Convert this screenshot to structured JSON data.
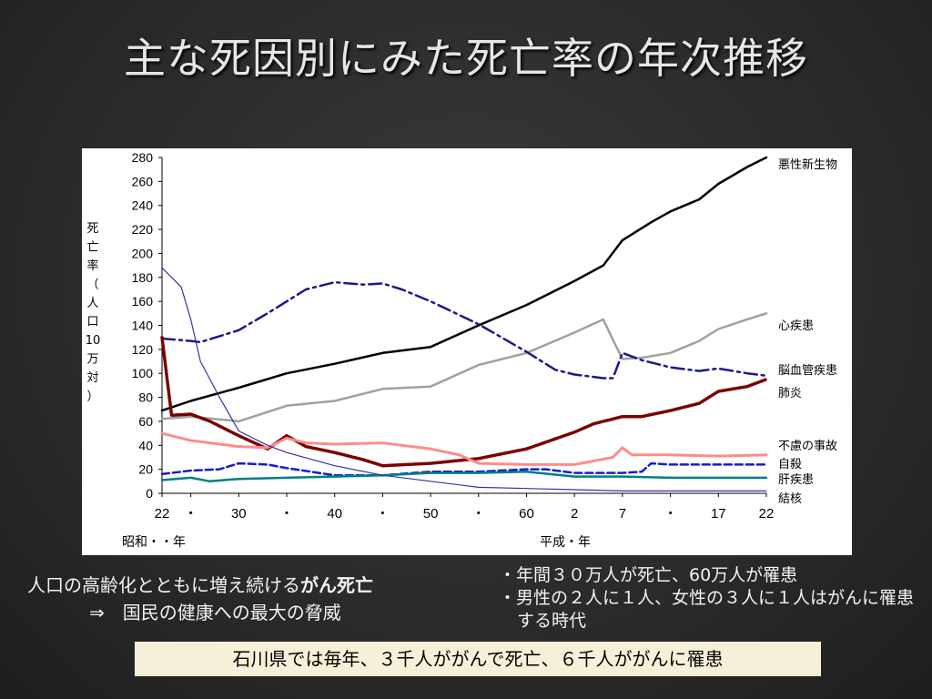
{
  "title": "主な死因別にみた死亡率の年次推移",
  "chart_data": {
    "type": "line",
    "ylabel": "死亡率（人口10万対）",
    "ylim": [
      0,
      280
    ],
    "yticks": [
      0,
      20,
      40,
      60,
      80,
      100,
      120,
      140,
      160,
      180,
      200,
      220,
      240,
      260,
      280
    ],
    "xlim": [
      1947,
      2010
    ],
    "xticks": [
      {
        "year": 1947,
        "label": "22"
      },
      {
        "year": 1950,
        "label": "・"
      },
      {
        "year": 1955,
        "label": "30"
      },
      {
        "year": 1960,
        "label": "・"
      },
      {
        "year": 1965,
        "label": "40"
      },
      {
        "year": 1970,
        "label": "・"
      },
      {
        "year": 1975,
        "label": "50"
      },
      {
        "year": 1980,
        "label": "・"
      },
      {
        "year": 1985,
        "label": "60"
      },
      {
        "year": 1990,
        "label": "2"
      },
      {
        "year": 1995,
        "label": "7"
      },
      {
        "year": 2000,
        "label": "・"
      },
      {
        "year": 2005,
        "label": "17"
      },
      {
        "year": 2010,
        "label": "22"
      }
    ],
    "era_labels": {
      "showa": "昭和・・年",
      "heisei": "平成・年"
    },
    "series": [
      {
        "name": "悪性新生物",
        "color": "#000000",
        "style": "solid",
        "width": 2.5,
        "x": [
          1947,
          1950,
          1955,
          1960,
          1965,
          1970,
          1975,
          1980,
          1985,
          1990,
          1993,
          1995,
          1998,
          2000,
          2003,
          2005,
          2008,
          2010
        ],
        "y": [
          69,
          77,
          88,
          100,
          108,
          117,
          122,
          140,
          157,
          177,
          190,
          211,
          226,
          235,
          245,
          258,
          272,
          280
        ]
      },
      {
        "name": "心疾患",
        "color": "#a0a0a0",
        "style": "solid",
        "width": 2.5,
        "x": [
          1947,
          1950,
          1955,
          1960,
          1965,
          1970,
          1975,
          1980,
          1985,
          1990,
          1993,
          1994,
          1995,
          1997,
          2000,
          2003,
          2005,
          2008,
          2010
        ],
        "y": [
          62,
          64,
          60,
          73,
          77,
          87,
          89,
          107,
          117,
          134,
          145,
          128,
          112,
          113,
          117,
          127,
          137,
          145,
          150
        ]
      },
      {
        "name": "脳血管疾患",
        "color": "#1a1a8c",
        "style": "dashdot",
        "width": 2.5,
        "x": [
          1947,
          1950,
          1951,
          1955,
          1958,
          1962,
          1965,
          1968,
          1970,
          1972,
          1975,
          1980,
          1985,
          1988,
          1990,
          1993,
          1994,
          1995,
          1997,
          2000,
          2003,
          2005,
          2008,
          2010
        ],
        "y": [
          129,
          127,
          126,
          136,
          150,
          170,
          176,
          174,
          175,
          170,
          160,
          141,
          118,
          103,
          99,
          96,
          96,
          117,
          111,
          105,
          102,
          104,
          100,
          98
        ]
      },
      {
        "name": "肺炎",
        "color": "#7a0000",
        "style": "dotted-thick",
        "width": 3.5,
        "x": [
          1947,
          1948,
          1950,
          1952,
          1955,
          1958,
          1960,
          1962,
          1965,
          1968,
          1970,
          1975,
          1980,
          1985,
          1990,
          1992,
          1995,
          1997,
          2000,
          2003,
          2005,
          2008,
          2010
        ],
        "y": [
          130,
          65,
          66,
          60,
          48,
          37,
          48,
          39,
          34,
          28,
          23,
          25,
          29,
          37,
          51,
          58,
          64,
          64,
          69,
          75,
          85,
          89,
          95
        ]
      },
      {
        "name": "不慮の事故",
        "color": "#ff8a8a",
        "style": "dotted-thick",
        "width": 3,
        "x": [
          1947,
          1950,
          1955,
          1958,
          1960,
          1962,
          1965,
          1970,
          1972,
          1975,
          1978,
          1980,
          1985,
          1990,
          1994,
          1995,
          1996,
          2000,
          2005,
          2010
        ],
        "y": [
          50,
          44,
          39,
          38,
          46,
          42,
          41,
          42,
          40,
          37,
          32,
          25,
          24,
          24,
          30,
          38,
          32,
          32,
          31,
          32
        ]
      },
      {
        "name": "自殺",
        "color": "#1a1acc",
        "style": "dashed",
        "width": 2.5,
        "x": [
          1947,
          1950,
          1953,
          1955,
          1958,
          1960,
          1965,
          1970,
          1975,
          1980,
          1985,
          1987,
          1990,
          1995,
          1997,
          1998,
          2000,
          2005,
          2010
        ],
        "y": [
          16,
          19,
          20,
          25,
          24,
          21,
          15,
          15,
          18,
          18,
          20,
          20,
          17,
          17,
          18,
          25,
          24,
          24,
          24
        ]
      },
      {
        "name": "肝疾患",
        "color": "#008080",
        "style": "solid",
        "width": 2.5,
        "x": [
          1947,
          1950,
          1952,
          1955,
          1960,
          1965,
          1970,
          1975,
          1980,
          1985,
          1990,
          1995,
          2000,
          2005,
          2010
        ],
        "y": [
          11,
          13,
          10,
          12,
          13,
          14,
          15,
          17,
          17,
          18,
          14,
          14,
          13,
          13,
          13
        ]
      },
      {
        "name": "結核",
        "color": "#3333aa",
        "style": "solid",
        "width": 1.2,
        "x": [
          1947,
          1949,
          1950,
          1951,
          1953,
          1955,
          1958,
          1960,
          1965,
          1970,
          1975,
          1980,
          1985,
          1990,
          1995,
          2000,
          2005,
          2010
        ],
        "y": [
          188,
          172,
          145,
          110,
          80,
          52,
          40,
          34,
          23,
          15,
          10,
          5,
          4,
          3,
          2,
          2,
          2,
          2
        ]
      }
    ]
  },
  "notes": {
    "left_line1_prefix": "人口の高齢化とともに増え続ける",
    "left_line1_bold": "がん死亡",
    "left_line2": "⇒　国民の健康への最大の脅威",
    "right_bullet1": "・年間３０万人が死亡、60万人が罹患",
    "right_bullet2": "・男性の２人に１人、女性の３人に１人はがんに罹患する時代"
  },
  "bottom_box": "石川県では毎年、３千人ががんで死亡、６千人ががんに罹患"
}
